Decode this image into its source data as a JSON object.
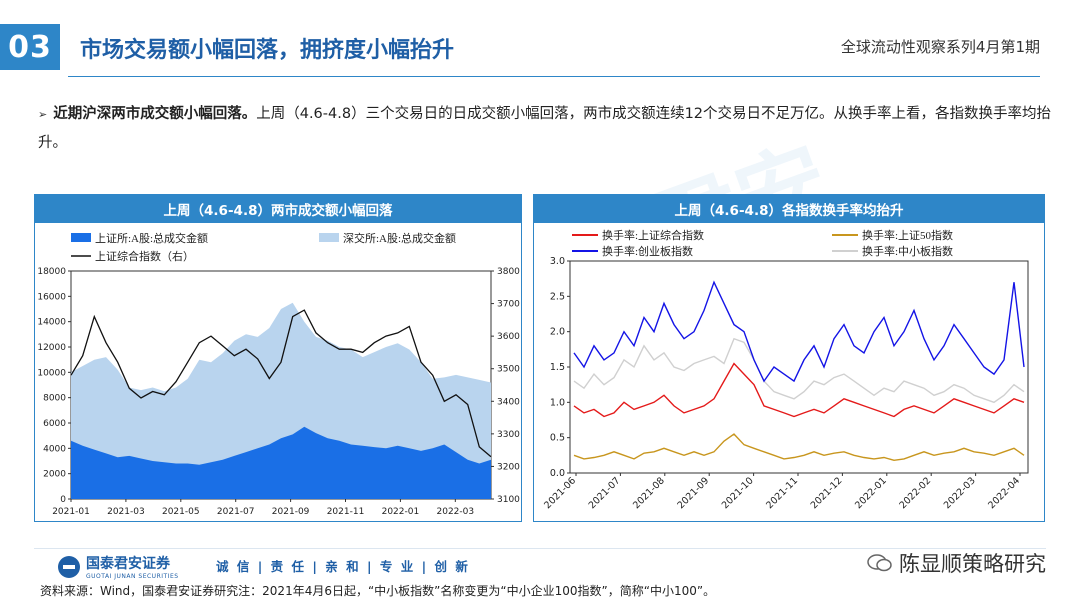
{
  "header": {
    "number": "03",
    "title": "市场交易额小幅回落，拥挤度小幅抬升",
    "right": "全球流动性观察系列4月第1期"
  },
  "bullet": {
    "bold": "近期沪深两市成交额小幅回落。",
    "text": "上周（4.6-4.8）三个交易日的日成交额小幅回落，两市成交额连续12个交易日不足万亿。从换手率上看，各指数换手率均抬升。"
  },
  "watermark": "泰君安",
  "footer": {
    "logo_name": "国泰君安证券",
    "logo_en": "GUOTAI JUNAN SECURITIES",
    "slogan": "诚 信 | 责 任 | 亲 和 | 专 业 | 创 新",
    "wechat": "陈显顺策略研究",
    "source": "资料来源：Wind，国泰君安证券研究注：2021年4月6日起，“中小板指数”名称变更为“中小企业100指数”，简称“中小100”。"
  },
  "colors": {
    "accent": "#2e86c8",
    "sh_bar": "#1a6fe6",
    "sz_area": "#b9d4ee",
    "index_line": "#111111",
    "sh_turn": "#e41a1a",
    "sz50_turn": "#c8961e",
    "cy_turn": "#1414e6",
    "zx_turn": "#d0d0d0"
  },
  "chart_data": [
    {
      "type": "area",
      "title": "上周（4.6-4.8）两市成交额小幅回落",
      "legend": [
        "上证所:A股:总成交金额",
        "深交所:A股:总成交金额",
        "上证综合指数（右）"
      ],
      "x_ticks": [
        "2021-01",
        "2021-03",
        "2021-05",
        "2021-07",
        "2021-09",
        "2021-11",
        "2022-01",
        "2022-03"
      ],
      "ylim_left": [
        0,
        18000
      ],
      "yticks_left": [
        "0",
        "2000",
        "4000",
        "6000",
        "8000",
        "10000",
        "12000",
        "14000",
        "16000",
        "18000"
      ],
      "ylim_right": [
        3100,
        3800
      ],
      "yticks_right": [
        "3100",
        "3200",
        "3300",
        "3400",
        "3500",
        "3600",
        "3700",
        "3800"
      ],
      "series": [
        {
          "name": "上证所:A股:总成交金额",
          "values": [
            4600,
            4200,
            3900,
            3600,
            3300,
            3400,
            3200,
            3000,
            2900,
            2800,
            2800,
            2700,
            2900,
            3100,
            3400,
            3700,
            4000,
            4300,
            4800,
            5100,
            5700,
            5200,
            4800,
            4600,
            4300,
            4200,
            4100,
            4000,
            4200,
            4000,
            3800,
            4000,
            4300,
            3700,
            3100,
            2800,
            3100
          ]
        },
        {
          "name": "深交所:A股:总成交金额",
          "values": [
            10000,
            10500,
            11000,
            11200,
            10200,
            8800,
            8600,
            8800,
            8500,
            8800,
            9500,
            11000,
            10800,
            11500,
            12500,
            13000,
            12800,
            13500,
            15000,
            15500,
            14000,
            12800,
            12500,
            12000,
            11800,
            11200,
            11600,
            12000,
            12300,
            11800,
            10800,
            9500,
            9600,
            9800,
            9600,
            9400,
            9200
          ]
        },
        {
          "name": "上证综合指数（右）",
          "values": [
            3480,
            3540,
            3660,
            3580,
            3520,
            3440,
            3410,
            3430,
            3420,
            3460,
            3520,
            3580,
            3600,
            3570,
            3540,
            3560,
            3530,
            3470,
            3520,
            3660,
            3680,
            3610,
            3580,
            3560,
            3560,
            3550,
            3580,
            3600,
            3610,
            3630,
            3520,
            3480,
            3400,
            3420,
            3390,
            3260,
            3230
          ]
        }
      ]
    },
    {
      "type": "line",
      "title": "上周（4.6-4.8）各指数换手率均抬升",
      "legend": [
        "换手率:上证综合指数",
        "换手率:上证50指数",
        "换手率:创业板指数",
        "换手率:中小板指数"
      ],
      "x_ticks": [
        "2021-06",
        "2021-07",
        "2021-08",
        "2021-09",
        "2021-10",
        "2021-11",
        "2021-12",
        "2022-01",
        "2022-02",
        "2022-03",
        "2022-04"
      ],
      "ylim": [
        0,
        3.0
      ],
      "yticks": [
        "0.0",
        "0.5",
        "1.0",
        "1.5",
        "2.0",
        "2.5",
        "3.0"
      ],
      "series": [
        {
          "name": "换手率:上证综合指数",
          "values": [
            0.95,
            0.85,
            0.9,
            0.8,
            0.85,
            1.0,
            0.9,
            0.95,
            1.0,
            1.1,
            0.95,
            0.85,
            0.9,
            0.95,
            1.05,
            1.3,
            1.55,
            1.4,
            1.25,
            0.95,
            0.9,
            0.85,
            0.8,
            0.85,
            0.9,
            0.85,
            0.95,
            1.05,
            1.0,
            0.95,
            0.9,
            0.85,
            0.8,
            0.9,
            0.95,
            0.9,
            0.85,
            0.95,
            1.05,
            1.0,
            0.95,
            0.9,
            0.85,
            0.95,
            1.05,
            1.0
          ]
        },
        {
          "name": "换手率:上证50指数",
          "values": [
            0.25,
            0.2,
            0.22,
            0.25,
            0.3,
            0.25,
            0.2,
            0.28,
            0.3,
            0.35,
            0.3,
            0.25,
            0.3,
            0.25,
            0.3,
            0.45,
            0.55,
            0.4,
            0.35,
            0.3,
            0.25,
            0.2,
            0.22,
            0.25,
            0.3,
            0.25,
            0.28,
            0.3,
            0.25,
            0.22,
            0.2,
            0.22,
            0.18,
            0.2,
            0.25,
            0.3,
            0.25,
            0.28,
            0.3,
            0.35,
            0.3,
            0.28,
            0.25,
            0.3,
            0.35,
            0.25
          ]
        },
        {
          "name": "换手率:创业板指数",
          "values": [
            1.7,
            1.5,
            1.8,
            1.6,
            1.7,
            2.0,
            1.8,
            2.2,
            2.0,
            2.4,
            2.1,
            1.9,
            2.0,
            2.3,
            2.7,
            2.4,
            2.1,
            2.0,
            1.6,
            1.3,
            1.5,
            1.4,
            1.3,
            1.6,
            1.8,
            1.5,
            1.9,
            2.1,
            1.8,
            1.7,
            2.0,
            2.2,
            1.8,
            2.0,
            2.3,
            1.9,
            1.6,
            1.8,
            2.1,
            1.9,
            1.7,
            1.5,
            1.4,
            1.6,
            2.7,
            1.5
          ]
        },
        {
          "name": "换手率:中小板指数",
          "values": [
            1.3,
            1.2,
            1.4,
            1.25,
            1.35,
            1.6,
            1.5,
            1.8,
            1.6,
            1.7,
            1.5,
            1.45,
            1.55,
            1.6,
            1.65,
            1.55,
            1.9,
            1.85,
            1.6,
            1.3,
            1.15,
            1.1,
            1.05,
            1.15,
            1.3,
            1.25,
            1.35,
            1.4,
            1.3,
            1.2,
            1.1,
            1.2,
            1.15,
            1.3,
            1.25,
            1.2,
            1.1,
            1.15,
            1.25,
            1.2,
            1.1,
            1.05,
            1.0,
            1.1,
            1.25,
            1.15
          ]
        }
      ]
    }
  ]
}
